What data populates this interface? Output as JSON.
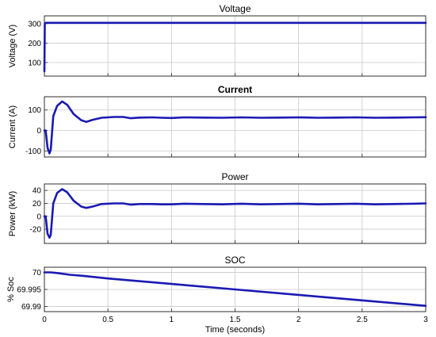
{
  "chart_data": [
    {
      "type": "line",
      "title": "Voltage",
      "title_bold": false,
      "xlabel": "",
      "ylabel": "Voltage (V)",
      "xlim": [
        0,
        3
      ],
      "ylim": [
        30,
        340
      ],
      "xticks": [
        0,
        0.5,
        1,
        1.5,
        2,
        2.5,
        3
      ],
      "yticks": [
        100,
        200,
        300
      ],
      "ytick_labels": [
        "100",
        "200",
        "300"
      ],
      "show_xtick_labels": false,
      "grid": true,
      "series_color": "#1a1ab3",
      "x": [
        0,
        0.003,
        0.008,
        0.02,
        0.5,
        1,
        1.5,
        2,
        2.5,
        3
      ],
      "y": [
        55,
        300,
        304,
        304,
        304,
        304,
        304,
        304,
        304,
        304
      ]
    },
    {
      "type": "line",
      "title": "Current",
      "title_bold": true,
      "xlabel": "",
      "ylabel": "Current (A)",
      "xlim": [
        0,
        3
      ],
      "ylim": [
        -130,
        165
      ],
      "xticks": [
        0,
        0.5,
        1,
        1.5,
        2,
        2.5,
        3
      ],
      "yticks": [
        -100,
        0,
        100
      ],
      "ytick_labels": [
        "-100",
        "0",
        "100"
      ],
      "show_xtick_labels": false,
      "grid": true,
      "series_color": "#1a1ab3",
      "x": [
        0,
        0.01,
        0.025,
        0.04,
        0.05,
        0.07,
        0.1,
        0.14,
        0.18,
        0.23,
        0.29,
        0.33,
        0.38,
        0.45,
        0.55,
        0.62,
        0.68,
        0.75,
        0.85,
        0.92,
        1.0,
        1.1,
        1.25,
        1.4,
        1.55,
        1.7,
        1.85,
        2.0,
        2.15,
        2.3,
        2.45,
        2.6,
        2.75,
        2.9,
        3.0
      ],
      "y": [
        0,
        0,
        -85,
        -112,
        -95,
        70,
        120,
        142,
        125,
        80,
        50,
        42,
        52,
        62,
        66,
        66,
        60,
        63,
        64,
        62,
        61,
        64,
        63,
        62,
        64,
        62,
        63,
        64,
        62,
        63,
        64,
        62,
        63,
        64,
        65
      ]
    },
    {
      "type": "line",
      "title": "Power",
      "title_bold": false,
      "xlabel": "",
      "ylabel": "Power (kW)",
      "xlim": [
        0,
        3
      ],
      "ylim": [
        -42,
        50
      ],
      "xticks": [
        0,
        0.5,
        1,
        1.5,
        2,
        2.5,
        3
      ],
      "yticks": [
        -20,
        0,
        20,
        40
      ],
      "ytick_labels": [
        "-20",
        "0",
        "20",
        "40"
      ],
      "show_xtick_labels": false,
      "grid": true,
      "series_color": "#1a1ab3",
      "x": [
        0,
        0.01,
        0.025,
        0.04,
        0.05,
        0.07,
        0.1,
        0.14,
        0.18,
        0.23,
        0.29,
        0.33,
        0.38,
        0.45,
        0.55,
        0.62,
        0.68,
        0.75,
        0.85,
        0.92,
        1.0,
        1.1,
        1.25,
        1.4,
        1.55,
        1.7,
        1.85,
        2.0,
        2.15,
        2.3,
        2.45,
        2.6,
        2.75,
        2.9,
        3.0
      ],
      "y": [
        0,
        0,
        -27,
        -33,
        -29,
        20,
        36,
        42,
        37,
        24,
        15,
        13,
        15,
        19,
        20,
        20,
        18,
        19,
        19,
        18.5,
        18.5,
        19.5,
        19,
        18.5,
        19.5,
        18.5,
        19,
        19.5,
        18.5,
        19,
        19.5,
        18.5,
        19,
        19.5,
        20
      ]
    },
    {
      "type": "line",
      "title": "SOC",
      "title_bold": false,
      "xlabel": "Time (seconds)",
      "ylabel": "% Soc",
      "xlim": [
        0,
        3
      ],
      "ylim": [
        69.9885,
        70.0015
      ],
      "xticks": [
        0,
        0.5,
        1,
        1.5,
        2,
        2.5,
        3
      ],
      "xtick_labels": [
        "0",
        "0.5",
        "1",
        "1.5",
        "2",
        "2.5",
        "3"
      ],
      "yticks": [
        69.99,
        69.995,
        70.0
      ],
      "ytick_labels": [
        "69.99",
        "69.995",
        "70"
      ],
      "show_xtick_labels": true,
      "grid": true,
      "series_color": "#1a1ab3",
      "x": [
        0,
        0.05,
        0.1,
        0.2,
        0.3,
        0.5,
        1,
        1.5,
        2,
        2.5,
        3
      ],
      "y": [
        70.0,
        70.0,
        69.9998,
        69.9993,
        69.999,
        69.9982,
        69.9966,
        69.995,
        69.9934,
        69.9918,
        69.9902
      ]
    }
  ]
}
